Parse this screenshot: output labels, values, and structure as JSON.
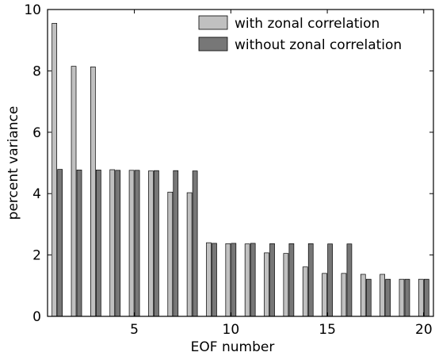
{
  "chart_data": {
    "type": "bar",
    "title": "",
    "xlabel": "EOF number",
    "ylabel": "percent variance",
    "xlim": [
      0.5,
      20.5
    ],
    "ylim": [
      0,
      10
    ],
    "xticks": [
      5,
      10,
      15,
      20
    ],
    "yticks": [
      0,
      2,
      4,
      6,
      8,
      10
    ],
    "grid": false,
    "legend_position": "top-right",
    "categories": [
      1,
      2,
      3,
      4,
      5,
      6,
      7,
      8,
      9,
      10,
      11,
      12,
      13,
      14,
      15,
      16,
      17,
      18,
      19,
      20
    ],
    "series": [
      {
        "name": "with zonal correlation",
        "color": "#c0c0c0",
        "values": [
          9.55,
          8.15,
          8.13,
          4.78,
          4.76,
          4.74,
          4.05,
          4.03,
          2.4,
          2.37,
          2.36,
          2.07,
          2.05,
          1.61,
          1.4,
          1.4,
          1.37,
          1.37,
          1.21,
          1.21
        ]
      },
      {
        "name": "without zonal correlation",
        "color": "#777777",
        "values": [
          4.79,
          4.77,
          4.77,
          4.76,
          4.76,
          4.75,
          4.75,
          4.74,
          2.38,
          2.38,
          2.38,
          2.37,
          2.37,
          2.37,
          2.36,
          2.36,
          1.21,
          1.21,
          1.21,
          1.21
        ]
      }
    ]
  }
}
